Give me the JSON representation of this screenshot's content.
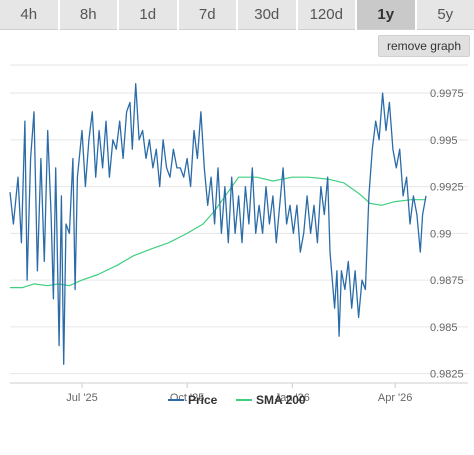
{
  "range_tabs": [
    {
      "label": "4h",
      "active": false
    },
    {
      "label": "8h",
      "active": false
    },
    {
      "label": "1d",
      "active": false
    },
    {
      "label": "7d",
      "active": false
    },
    {
      "label": "30d",
      "active": false
    },
    {
      "label": "120d",
      "active": false
    },
    {
      "label": "1y",
      "active": true
    },
    {
      "label": "5y",
      "active": false
    }
  ],
  "remove_graph_label": "remove graph",
  "colors": {
    "price": "#2b6ca8",
    "sma": "#3fcf7f"
  },
  "chart_data": {
    "type": "line",
    "title": "",
    "xlabel": "",
    "ylabel": "",
    "x_start": "2025-04-29",
    "x_end": "2026-04-28",
    "ylim": [
      0.982,
      0.999
    ],
    "grid": true,
    "y_axis_position": "right",
    "legend_position": "bottom-center",
    "y_ticks": [
      0.9825,
      0.985,
      0.9875,
      0.99,
      0.9925,
      0.995,
      0.9975
    ],
    "y_tick_labels": [
      "0.9825",
      "0.985",
      "0.9875",
      "0.99",
      "0.9925",
      "0.995",
      "0.9975"
    ],
    "x_ticks": [
      {
        "date": "2025-07-01",
        "label": "Jul '25"
      },
      {
        "date": "2025-10-01",
        "label": "Oct '25"
      },
      {
        "date": "2026-01-01",
        "label": "Jan '26"
      },
      {
        "date": "2026-04-01",
        "label": "Apr '26"
      }
    ],
    "series": [
      {
        "name": "Price",
        "points": [
          [
            "2025-04-29",
            0.9922
          ],
          [
            "2025-05-02",
            0.9905
          ],
          [
            "2025-05-06",
            0.993
          ],
          [
            "2025-05-09",
            0.9895
          ],
          [
            "2025-05-12",
            0.996
          ],
          [
            "2025-05-14",
            0.9875
          ],
          [
            "2025-05-17",
            0.994
          ],
          [
            "2025-05-20",
            0.9965
          ],
          [
            "2025-05-23",
            0.988
          ],
          [
            "2025-05-26",
            0.994
          ],
          [
            "2025-05-29",
            0.9885
          ],
          [
            "2025-06-01",
            0.9955
          ],
          [
            "2025-06-04",
            0.991
          ],
          [
            "2025-06-06",
            0.9865
          ],
          [
            "2025-06-08",
            0.9935
          ],
          [
            "2025-06-11",
            0.984
          ],
          [
            "2025-06-13",
            0.992
          ],
          [
            "2025-06-15",
            0.983
          ],
          [
            "2025-06-17",
            0.9905
          ],
          [
            "2025-06-20",
            0.99
          ],
          [
            "2025-06-23",
            0.994
          ],
          [
            "2025-06-25",
            0.987
          ],
          [
            "2025-06-27",
            0.993
          ],
          [
            "2025-07-01",
            0.9955
          ],
          [
            "2025-07-04",
            0.9925
          ],
          [
            "2025-07-07",
            0.995
          ],
          [
            "2025-07-10",
            0.9965
          ],
          [
            "2025-07-13",
            0.993
          ],
          [
            "2025-07-16",
            0.9955
          ],
          [
            "2025-07-19",
            0.9935
          ],
          [
            "2025-07-22",
            0.996
          ],
          [
            "2025-07-25",
            0.993
          ],
          [
            "2025-07-28",
            0.995
          ],
          [
            "2025-07-31",
            0.9945
          ],
          [
            "2025-08-03",
            0.996
          ],
          [
            "2025-08-06",
            0.994
          ],
          [
            "2025-08-09",
            0.9965
          ],
          [
            "2025-08-12",
            0.997
          ],
          [
            "2025-08-14",
            0.9945
          ],
          [
            "2025-08-17",
            0.998
          ],
          [
            "2025-08-20",
            0.995
          ],
          [
            "2025-08-23",
            0.9955
          ],
          [
            "2025-08-26",
            0.994
          ],
          [
            "2025-08-29",
            0.995
          ],
          [
            "2025-09-01",
            0.9935
          ],
          [
            "2025-09-04",
            0.9945
          ],
          [
            "2025-09-07",
            0.9925
          ],
          [
            "2025-09-10",
            0.995
          ],
          [
            "2025-09-13",
            0.9935
          ],
          [
            "2025-09-16",
            0.993
          ],
          [
            "2025-09-19",
            0.9945
          ],
          [
            "2025-09-22",
            0.9935
          ],
          [
            "2025-09-25",
            0.9935
          ],
          [
            "2025-09-28",
            0.993
          ],
          [
            "2025-10-01",
            0.994
          ],
          [
            "2025-10-04",
            0.9925
          ],
          [
            "2025-10-07",
            0.9955
          ],
          [
            "2025-10-10",
            0.994
          ],
          [
            "2025-10-13",
            0.9965
          ],
          [
            "2025-10-16",
            0.9935
          ],
          [
            "2025-10-19",
            0.9915
          ],
          [
            "2025-10-22",
            0.993
          ],
          [
            "2025-10-25",
            0.9905
          ],
          [
            "2025-10-28",
            0.9935
          ],
          [
            "2025-10-31",
            0.99
          ],
          [
            "2025-11-03",
            0.9925
          ],
          [
            "2025-11-06",
            0.9895
          ],
          [
            "2025-11-09",
            0.993
          ],
          [
            "2025-11-12",
            0.99
          ],
          [
            "2025-11-15",
            0.992
          ],
          [
            "2025-11-18",
            0.9895
          ],
          [
            "2025-11-21",
            0.9925
          ],
          [
            "2025-11-24",
            0.9905
          ],
          [
            "2025-11-27",
            0.9935
          ],
          [
            "2025-11-30",
            0.99
          ],
          [
            "2025-12-03",
            0.9915
          ],
          [
            "2025-12-06",
            0.99
          ],
          [
            "2025-12-09",
            0.9925
          ],
          [
            "2025-12-12",
            0.9905
          ],
          [
            "2025-12-15",
            0.992
          ],
          [
            "2025-12-18",
            0.9895
          ],
          [
            "2025-12-21",
            0.9915
          ],
          [
            "2025-12-24",
            0.9935
          ],
          [
            "2025-12-27",
            0.9905
          ],
          [
            "2025-12-30",
            0.9915
          ],
          [
            "2026-01-02",
            0.99
          ],
          [
            "2026-01-05",
            0.9915
          ],
          [
            "2026-01-08",
            0.989
          ],
          [
            "2026-01-11",
            0.99
          ],
          [
            "2026-01-14",
            0.992
          ],
          [
            "2026-01-17",
            0.99
          ],
          [
            "2026-01-20",
            0.9915
          ],
          [
            "2026-01-23",
            0.9895
          ],
          [
            "2026-01-26",
            0.9925
          ],
          [
            "2026-01-29",
            0.991
          ],
          [
            "2026-02-01",
            0.993
          ],
          [
            "2026-02-03",
            0.989
          ],
          [
            "2026-02-05",
            0.9875
          ],
          [
            "2026-02-07",
            0.986
          ],
          [
            "2026-02-09",
            0.988
          ],
          [
            "2026-02-11",
            0.9845
          ],
          [
            "2026-02-13",
            0.988
          ],
          [
            "2026-02-16",
            0.987
          ],
          [
            "2026-02-19",
            0.9885
          ],
          [
            "2026-02-22",
            0.986
          ],
          [
            "2026-02-25",
            0.988
          ],
          [
            "2026-02-28",
            0.9855
          ],
          [
            "2026-03-03",
            0.9875
          ],
          [
            "2026-03-06",
            0.987
          ],
          [
            "2026-03-09",
            0.992
          ],
          [
            "2026-03-12",
            0.9945
          ],
          [
            "2026-03-15",
            0.996
          ],
          [
            "2026-03-18",
            0.995
          ],
          [
            "2026-03-21",
            0.9975
          ],
          [
            "2026-03-24",
            0.9955
          ],
          [
            "2026-03-27",
            0.997
          ],
          [
            "2026-03-30",
            0.9945
          ],
          [
            "2026-04-02",
            0.9935
          ],
          [
            "2026-04-05",
            0.9945
          ],
          [
            "2026-04-08",
            0.992
          ],
          [
            "2026-04-11",
            0.993
          ],
          [
            "2026-04-14",
            0.9905
          ],
          [
            "2026-04-17",
            0.992
          ],
          [
            "2026-04-20",
            0.991
          ],
          [
            "2026-04-23",
            0.989
          ],
          [
            "2026-04-25",
            0.991
          ],
          [
            "2026-04-28",
            0.992
          ]
        ]
      },
      {
        "name": "SMA 200",
        "points": [
          [
            "2025-04-29",
            0.9871
          ],
          [
            "2025-05-10",
            0.9871
          ],
          [
            "2025-05-20",
            0.9873
          ],
          [
            "2025-06-01",
            0.9872
          ],
          [
            "2025-06-10",
            0.9873
          ],
          [
            "2025-06-20",
            0.9872
          ],
          [
            "2025-07-01",
            0.9875
          ],
          [
            "2025-07-15",
            0.9878
          ],
          [
            "2025-08-01",
            0.9883
          ],
          [
            "2025-08-15",
            0.9888
          ],
          [
            "2025-09-01",
            0.9892
          ],
          [
            "2025-09-15",
            0.9895
          ],
          [
            "2025-10-01",
            0.99
          ],
          [
            "2025-10-15",
            0.9905
          ],
          [
            "2025-10-25",
            0.9912
          ],
          [
            "2025-11-01",
            0.9918
          ],
          [
            "2025-11-15",
            0.993
          ],
          [
            "2025-12-01",
            0.993
          ],
          [
            "2025-12-15",
            0.9928
          ],
          [
            "2026-01-01",
            0.993
          ],
          [
            "2026-01-15",
            0.993
          ],
          [
            "2026-02-01",
            0.9929
          ],
          [
            "2026-02-15",
            0.9927
          ],
          [
            "2026-03-01",
            0.9921
          ],
          [
            "2026-03-10",
            0.9916
          ],
          [
            "2026-03-20",
            0.9915
          ],
          [
            "2026-04-01",
            0.9917
          ],
          [
            "2026-04-15",
            0.9918
          ],
          [
            "2026-04-28",
            0.9918
          ]
        ]
      }
    ]
  }
}
